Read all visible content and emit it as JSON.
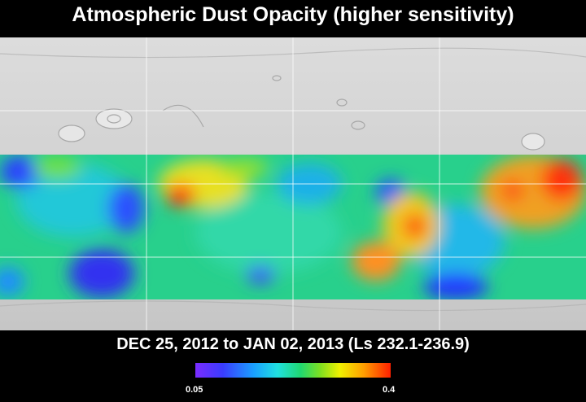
{
  "title": "Atmospheric Dust Opacity (higher sensitivity)",
  "date_range": "DEC 25, 2012 to JAN 02, 2013 (Ls 232.1-236.9)",
  "colorbar": {
    "min_label": "0.05",
    "max_label": "0.4",
    "colors": [
      "#7a2cff",
      "#3a3cff",
      "#1aa0ff",
      "#20e0e0",
      "#20d870",
      "#7fe020",
      "#f0f000",
      "#ffa000",
      "#ff2000"
    ]
  }
}
